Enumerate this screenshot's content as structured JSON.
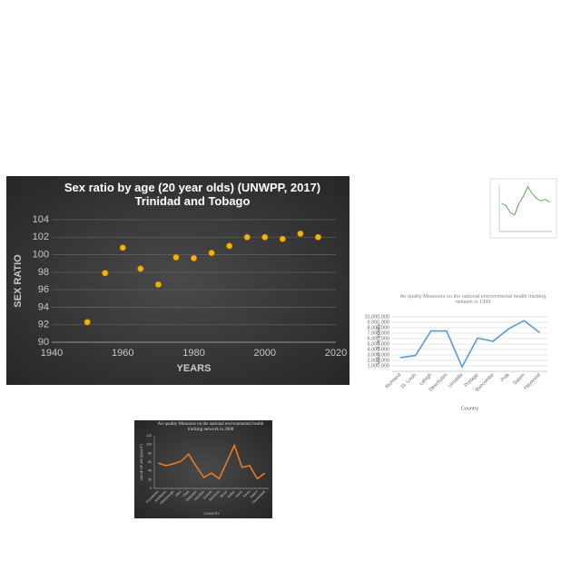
{
  "chart_data": [
    {
      "type": "scatter",
      "title": "Sex ratio by age (20 year olds) (UNWPP, 2017) Trinidad and Tobago",
      "x_label": "YEARS",
      "y_label": "SEX RATIO",
      "color": "#f5b300",
      "x": [
        1950,
        1955,
        1960,
        1965,
        1970,
        1975,
        1980,
        1985,
        1990,
        1995,
        2000,
        2005,
        2010,
        2015
      ],
      "values": [
        92.3,
        97.9,
        100.8,
        98.4,
        96.6,
        99.7,
        99.6,
        100.2,
        101.0,
        102.0,
        102.0,
        101.8,
        102.4,
        102.0
      ],
      "xlim": [
        1940,
        2020
      ],
      "xticks": [
        1940,
        1960,
        1980,
        2000,
        2020
      ],
      "ylim": [
        90,
        104
      ],
      "yticks": [
        90,
        92,
        94,
        96,
        98,
        100,
        102,
        104
      ],
      "grid": true
    },
    {
      "type": "line",
      "title": "Air quality Measures on the national environmental health tracking network in 1999",
      "x_label": "Country",
      "y_label": "Value of air quality",
      "color": "#5b9bd5",
      "categories": [
        "Richland",
        "St. Louis",
        "Lehigh",
        "Deschutes",
        "Umatilla",
        "Portage",
        "Buncombe",
        "Polk",
        "Salem",
        "Haywood"
      ],
      "values": [
        2500000,
        2900000,
        7400000,
        7400000,
        800000,
        6100000,
        5500000,
        7800000,
        9300000,
        7100000
      ],
      "ylim": [
        0,
        10000000
      ],
      "yticks": [
        {
          "value": 1000000,
          "label": "1,000,000"
        },
        {
          "value": 2000000,
          "label": "2,000,000"
        },
        {
          "value": 3000000,
          "label": "3,000,000"
        },
        {
          "value": 4000000,
          "label": "4,000,000"
        },
        {
          "value": 5000000,
          "label": "5,000,000"
        },
        {
          "value": 6000000,
          "label": "6,000,000"
        },
        {
          "value": 7000000,
          "label": "7,000,000"
        },
        {
          "value": 8000000,
          "label": "8,000,000"
        },
        {
          "value": 9000000,
          "label": "9,000,000"
        },
        {
          "value": 10000000,
          "label": "10,000,000"
        }
      ],
      "grid": true
    },
    {
      "type": "line",
      "title": "Air quality Measures on the national environmental health tracking network in 2008",
      "x_label": "COUNTRY",
      "y_label": "VALUE OF AIR QUALITY",
      "color": "#e8782a",
      "categories": [
        "Providence",
        "Middlesex",
        "Hillsborough",
        "Allen",
        "Clark",
        "Delaware",
        "Hamilton",
        "Summit",
        "Davidson",
        "Bexar",
        "Dallas",
        "Harris",
        "Travis",
        "Salem",
        "Chesterfield"
      ],
      "values": [
        58,
        52,
        56,
        62,
        78,
        50,
        25,
        35,
        22,
        60,
        98,
        48,
        52,
        22,
        35
      ],
      "ylim": [
        0,
        120
      ],
      "yticks": [
        0,
        20,
        40,
        60,
        80,
        100,
        120
      ],
      "grid": false
    },
    {
      "type": "line",
      "color": "#2ca02c",
      "values": [
        60,
        55,
        40,
        35,
        60,
        75,
        95,
        80,
        70,
        65,
        68,
        62
      ],
      "ylim": [
        0,
        100
      ]
    }
  ]
}
